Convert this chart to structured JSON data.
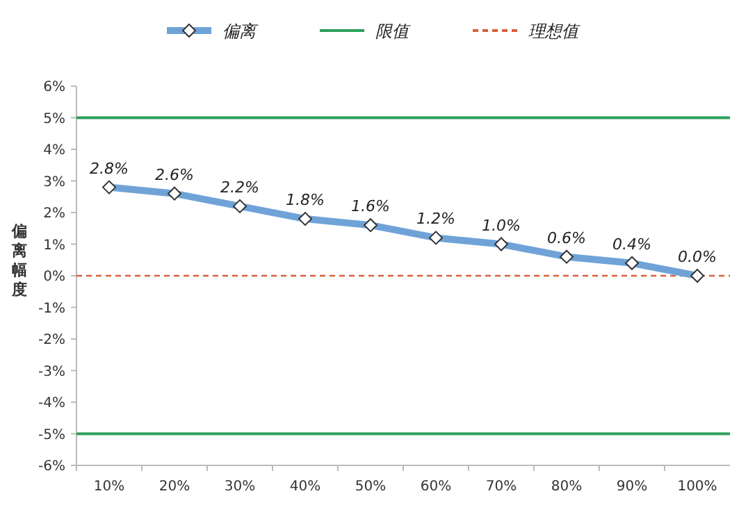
{
  "chart_data": {
    "type": "line",
    "ylabel": "偏离幅度",
    "categories": [
      "10%",
      "20%",
      "30%",
      "40%",
      "50%",
      "60%",
      "70%",
      "80%",
      "90%",
      "100%"
    ],
    "series": [
      {
        "name": "偏离",
        "color": "#6fa3d8",
        "values": [
          2.8,
          2.6,
          2.2,
          1.8,
          1.6,
          1.2,
          1.0,
          0.6,
          0.4,
          0.0
        ],
        "value_labels": [
          "2.8%",
          "2.6%",
          "2.2%",
          "1.8%",
          "1.6%",
          "1.2%",
          "1.0%",
          "0.6%",
          "0.4%",
          "0.0%"
        ]
      }
    ],
    "marker": "diamond",
    "legend": "top",
    "ylim": [
      -6,
      6
    ],
    "yticks": [
      {
        "value": -6,
        "label": "-6%"
      },
      {
        "value": -5,
        "label": "-5%"
      },
      {
        "value": -4,
        "label": "-4%"
      },
      {
        "value": -3,
        "label": "-3%"
      },
      {
        "value": -2,
        "label": "-2%"
      },
      {
        "value": -1,
        "label": "-1%"
      },
      {
        "value": 0,
        "label": "0%"
      },
      {
        "value": 1,
        "label": "1%"
      },
      {
        "value": 2,
        "label": "2%"
      },
      {
        "value": 3,
        "label": "3%"
      },
      {
        "value": 4,
        "label": "4%"
      },
      {
        "value": 5,
        "label": "5%"
      },
      {
        "value": 6,
        "label": "6%"
      }
    ],
    "ref_lines": [
      {
        "axis": "y",
        "value": 5,
        "label": "限值",
        "color": "#2ca05a",
        "line_style": "solid"
      },
      {
        "axis": "y",
        "value": -5,
        "color": "#2ca05a",
        "line_style": "solid"
      },
      {
        "axis": "y",
        "value": 0,
        "label": "理想值",
        "color": "#d9603a",
        "line_style": "dashed"
      }
    ]
  }
}
